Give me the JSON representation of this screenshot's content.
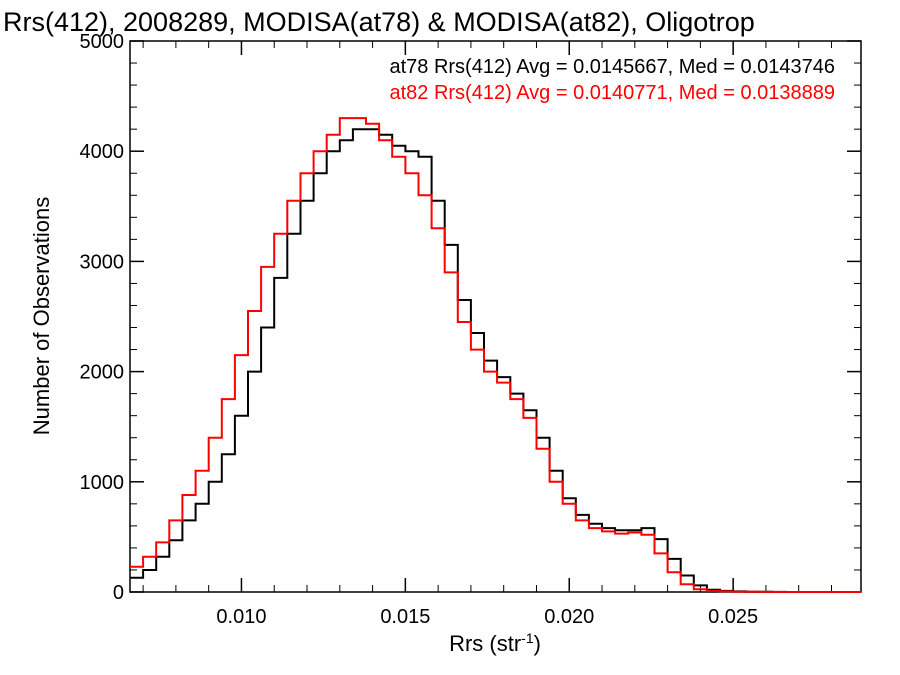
{
  "chart_data": {
    "type": "line",
    "title": "Rrs(412), 2008289, MODISA(at78) & MODISA(at82), Oligotrop",
    "xlabel": "Rrs (str",
    "xlabel_sup": "-1",
    "xlabel_end": ")",
    "ylabel": "Number of Observations",
    "xlim": [
      0.0066,
      0.0289
    ],
    "ylim": [
      0,
      5000
    ],
    "x_ticks": [
      0.01,
      0.015,
      0.02,
      0.025
    ],
    "x_tick_labels": [
      "0.010",
      "0.015",
      "0.020",
      "0.025"
    ],
    "y_ticks": [
      0,
      1000,
      2000,
      3000,
      4000,
      5000
    ],
    "y_tick_labels": [
      "0",
      "1000",
      "2000",
      "3000",
      "4000",
      "5000"
    ],
    "annotations": [
      "at78 Rrs(412) Avg = 0.0145667, Med = 0.0143746",
      "at82 Rrs(412) Avg = 0.0140771, Med = 0.0138889"
    ],
    "series": [
      {
        "color": "#000000",
        "x": [
          0.0066,
          0.007,
          0.0074,
          0.0078,
          0.0082,
          0.0086,
          0.009,
          0.0094,
          0.0098,
          0.0102,
          0.0106,
          0.011,
          0.0114,
          0.0118,
          0.0122,
          0.0126,
          0.013,
          0.0134,
          0.0138,
          0.0142,
          0.0146,
          0.015,
          0.0154,
          0.0158,
          0.0162,
          0.0166,
          0.017,
          0.0174,
          0.0178,
          0.0182,
          0.0186,
          0.019,
          0.0194,
          0.0198,
          0.0202,
          0.0206,
          0.021,
          0.0214,
          0.0218,
          0.0222,
          0.0226,
          0.023,
          0.0234,
          0.0238,
          0.0242,
          0.0246,
          0.025,
          0.0254,
          0.0258,
          0.0262,
          0.0266,
          0.027,
          0.0274,
          0.0278,
          0.0282,
          0.0286,
          0.0289
        ],
        "y": [
          130,
          200,
          320,
          470,
          650,
          800,
          1000,
          1250,
          1600,
          2000,
          2400,
          2850,
          3250,
          3550,
          3800,
          4000,
          4100,
          4200,
          4200,
          4150,
          4050,
          4000,
          3950,
          3550,
          3150,
          2650,
          2350,
          2100,
          1950,
          1800,
          1650,
          1400,
          1100,
          850,
          700,
          620,
          580,
          560,
          560,
          580,
          480,
          300,
          150,
          60,
          20,
          10,
          5,
          3,
          2,
          1,
          0,
          0,
          0,
          0,
          0,
          0,
          0
        ]
      },
      {
        "color": "#ff0000",
        "x": [
          0.0066,
          0.007,
          0.0074,
          0.0078,
          0.0082,
          0.0086,
          0.009,
          0.0094,
          0.0098,
          0.0102,
          0.0106,
          0.011,
          0.0114,
          0.0118,
          0.0122,
          0.0126,
          0.013,
          0.0134,
          0.0138,
          0.0142,
          0.0146,
          0.015,
          0.0154,
          0.0158,
          0.0162,
          0.0166,
          0.017,
          0.0174,
          0.0178,
          0.0182,
          0.0186,
          0.019,
          0.0194,
          0.0198,
          0.0202,
          0.0206,
          0.021,
          0.0214,
          0.0218,
          0.0222,
          0.0226,
          0.023,
          0.0234,
          0.0238,
          0.0242,
          0.0246,
          0.025,
          0.0254,
          0.0258,
          0.0262,
          0.0266,
          0.027,
          0.0274,
          0.0278,
          0.0282,
          0.0286,
          0.0289
        ],
        "y": [
          230,
          320,
          450,
          650,
          880,
          1100,
          1400,
          1750,
          2150,
          2550,
          2950,
          3250,
          3550,
          3800,
          4000,
          4150,
          4300,
          4300,
          4250,
          4100,
          3950,
          3800,
          3600,
          3300,
          2900,
          2450,
          2200,
          2000,
          1900,
          1750,
          1580,
          1300,
          1000,
          800,
          650,
          580,
          550,
          530,
          540,
          520,
          350,
          180,
          70,
          25,
          10,
          5,
          3,
          2,
          1,
          0,
          0,
          0,
          0,
          0,
          0,
          0,
          0
        ]
      }
    ]
  }
}
